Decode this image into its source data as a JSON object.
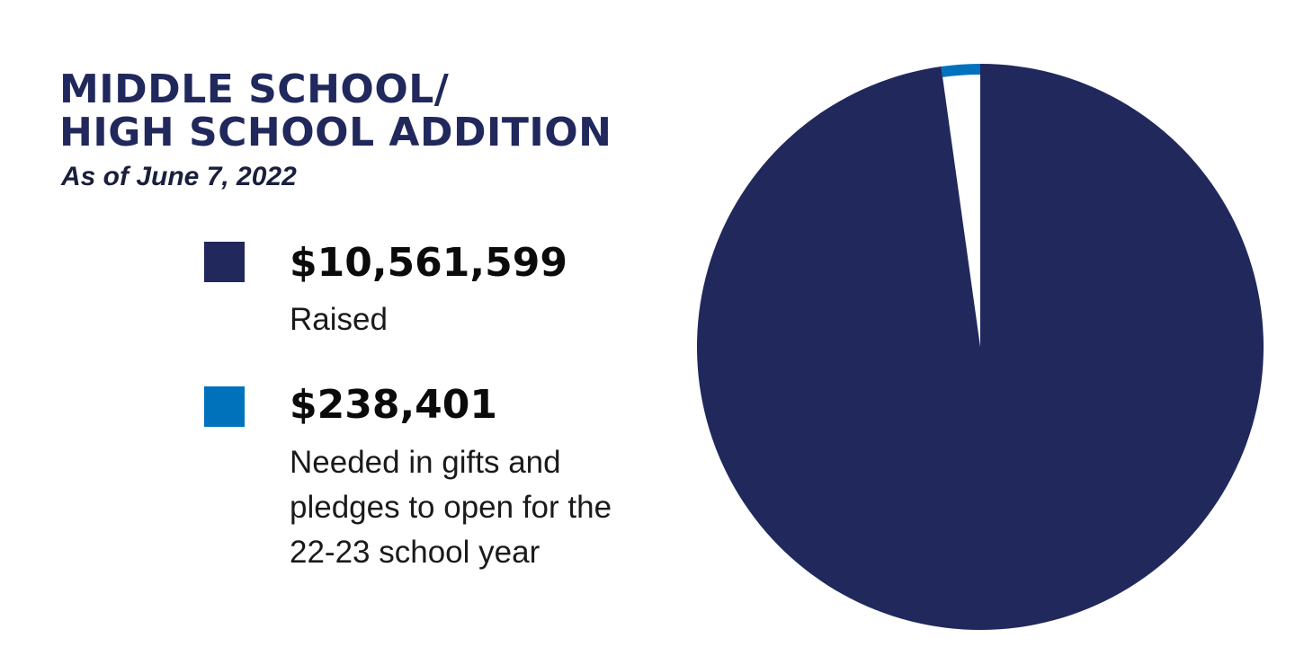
{
  "title_line1": "MIDDLE SCHOOL/",
  "title_line2": "HIGH SCHOOL ADDITION",
  "subtitle": "As of June 7, 2022",
  "legend": [
    {
      "amount": "$10,561,599",
      "description": "Raised",
      "color": "#20285c"
    },
    {
      "amount": "$238,401",
      "description": "Needed in gifts and pledges to open for the 22-23 school year",
      "color": "#0072bc"
    }
  ],
  "colors": {
    "title": "#20285c",
    "raised": "#20285c",
    "needed": "#0072bc",
    "background": "#ffffff"
  },
  "chart_data": {
    "type": "pie",
    "title": "MIDDLE SCHOOL/ HIGH SCHOOL ADDITION",
    "subtitle": "As of June 7, 2022",
    "categories": [
      "Raised",
      "Needed in gifts and pledges to open for the 22-23 school year"
    ],
    "values": [
      10561599,
      238401
    ],
    "colors": [
      "#20285c",
      "#0072bc"
    ],
    "start_angle_deg": 0,
    "direction": "clockwise",
    "needed_slice_style": "outer-ring",
    "legend_position": "left"
  }
}
